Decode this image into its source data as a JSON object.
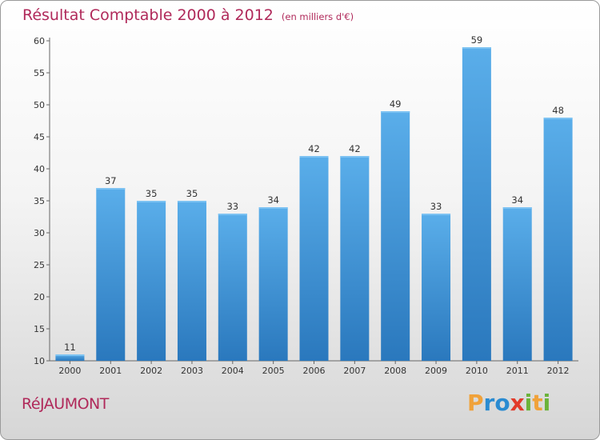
{
  "title": "Résultat Comptable 2000 à 2012",
  "unit": "(en milliers d'€)",
  "commune": "RéJAUMONT",
  "logo": {
    "letters": [
      {
        "char": "P",
        "color": "#f0a23a"
      },
      {
        "char": "r",
        "color": "#2a8bd1"
      },
      {
        "char": "o",
        "color": "#2a8bd1"
      },
      {
        "char": "x",
        "color": "#e23a2a"
      },
      {
        "char": "i",
        "color": "#6bb33a"
      },
      {
        "char": "t",
        "color": "#f0a23a"
      },
      {
        "char": "i",
        "color": "#6bb33a"
      }
    ]
  },
  "chart_data": {
    "type": "bar",
    "title": "Résultat Comptable 2000 à 2012",
    "xlabel": "",
    "ylabel": "(en milliers d'€)",
    "categories": [
      "2000",
      "2001",
      "2002",
      "2003",
      "2004",
      "2005",
      "2006",
      "2007",
      "2008",
      "2009",
      "2010",
      "2011",
      "2012"
    ],
    "values": [
      11,
      37,
      35,
      35,
      33,
      34,
      42,
      42,
      49,
      33,
      59,
      34,
      48
    ],
    "ylim": [
      10,
      60
    ],
    "yticks": [
      10,
      15,
      20,
      25,
      30,
      35,
      40,
      45,
      50,
      55,
      60
    ],
    "grid": false,
    "bar_color": "#3a8fd6"
  }
}
